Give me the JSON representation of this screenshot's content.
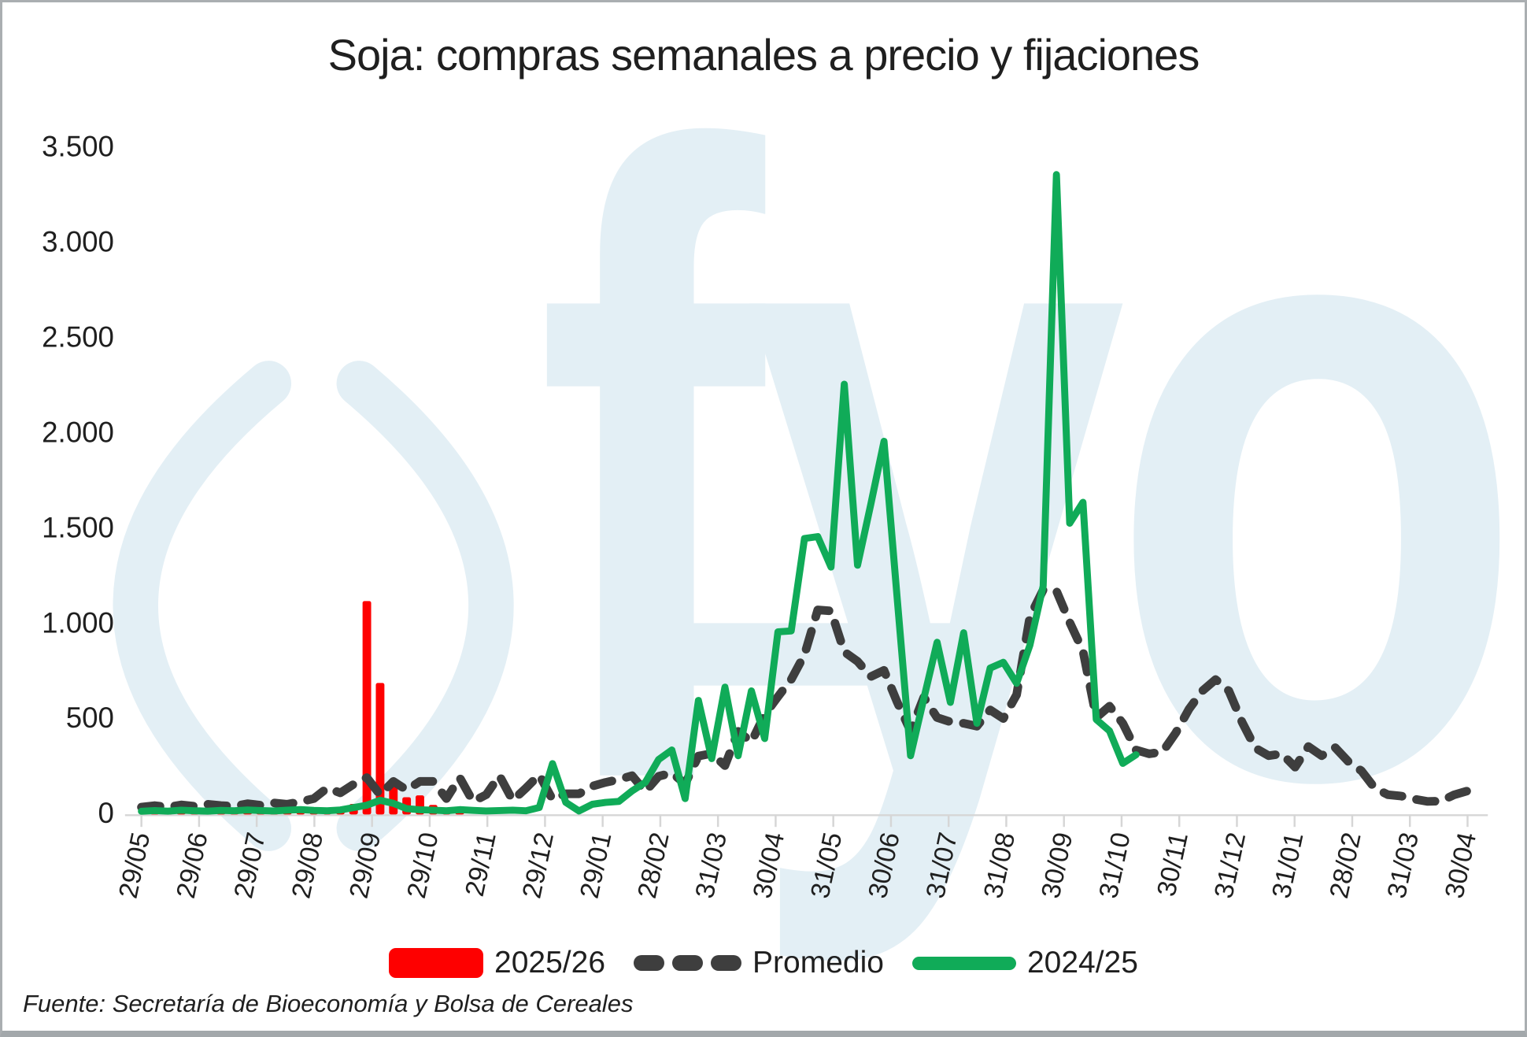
{
  "title": "Soja: compras semanales a precio y fijaciones",
  "source_note": "Fuente: Secretaría de Bioeconomía y Bolsa de Cereales",
  "watermark_text": "fyo",
  "colors": {
    "background": "#FFFFFF",
    "frame_border": "#AAAEB1",
    "red": "#FE0000",
    "green": "#10AB58",
    "dark": "#3E3E3E",
    "axis": "#D6D6D6",
    "watermark": "#E3EFF5",
    "text": "#1F1F1F"
  },
  "legend": {
    "items": [
      {
        "label": "2025/26",
        "type": "bar"
      },
      {
        "label": "Promedio",
        "type": "dashed-line"
      },
      {
        "label": "2024/25",
        "type": "line"
      }
    ]
  },
  "chart_data": {
    "type": "mixed bar + line (weekly purchases, tonnes in thousands)",
    "title": "Soja: compras semanales a precio y fijaciones",
    "xlabel": "",
    "ylabel": "",
    "grid": false,
    "legend_position": "bottom-center",
    "weeks_total": 101,
    "x_axis": {
      "note": "weekly data points, monthly tick labels, labels rotated",
      "tick_labels": [
        "29/05",
        "29/06",
        "29/07",
        "29/08",
        "29/09",
        "29/10",
        "29/11",
        "29/12",
        "29/01",
        "28/02",
        "31/03",
        "30/04",
        "31/05",
        "30/06",
        "31/07",
        "31/08",
        "30/09",
        "31/10",
        "30/11",
        "31/12",
        "31/01",
        "28/02",
        "31/03",
        "30/04"
      ]
    },
    "y_axis": {
      "min": 0,
      "max": 3500,
      "tick_values": [
        0,
        500,
        1000,
        1500,
        2000,
        2500,
        3000,
        3500
      ],
      "tick_labels": [
        "0",
        "500",
        "1.000",
        "1.500",
        "2.000",
        "2.500",
        "3.000",
        "3.500"
      ]
    },
    "series": [
      {
        "name": "2025/26",
        "type": "bar",
        "color": "#FE0000",
        "start_week": 0,
        "values": [
          0,
          2,
          1,
          3,
          2,
          2,
          4,
          8,
          5,
          10,
          7,
          12,
          20,
          34,
          24,
          40,
          55,
          1120,
          690,
          150,
          90,
          100,
          50,
          15,
          8
        ]
      },
      {
        "name": "Promedio",
        "type": "line",
        "dashed": true,
        "color": "#3E3E3E",
        "start_week": 0,
        "values": [
          30,
          38,
          30,
          42,
          35,
          45,
          38,
          35,
          48,
          40,
          52,
          45,
          58,
          75,
          130,
          105,
          150,
          185,
          95,
          165,
          120,
          165,
          165,
          75,
          185,
          60,
          95,
          195,
          65,
          130,
          200,
          70,
          100,
          100,
          140,
          160,
          175,
          195,
          112,
          192,
          210,
          152,
          298,
          312,
          248,
          428,
          372,
          515,
          610,
          700,
          830,
          1065,
          1060,
          845,
          795,
          715,
          748,
          580,
          430,
          607,
          500,
          478,
          470,
          455,
          540,
          495,
          620,
          1030,
          1170,
          1165,
          1000,
          850,
          500,
          560,
          470,
          330,
          310,
          320,
          420,
          545,
          640,
          700,
          640,
          476,
          340,
          300,
          310,
          240,
          348,
          300,
          344,
          270,
          220,
          130,
          95,
          88,
          72,
          60,
          62,
          95,
          115
        ]
      },
      {
        "name": "2024/25",
        "type": "line",
        "dashed": false,
        "color": "#10AB58",
        "start_week": 0,
        "values": [
          8,
          12,
          9,
          14,
          11,
          9,
          13,
          11,
          15,
          12,
          10,
          14,
          17,
          13,
          11,
          15,
          28,
          40,
          66,
          50,
          22,
          16,
          14,
          11,
          17,
          13,
          10,
          12,
          14,
          11,
          28,
          258,
          55,
          10,
          45,
          55,
          60,
          115,
          160,
          280,
          330,
          75,
          590,
          285,
          660,
          300,
          640,
          390,
          950,
          955,
          1440,
          1450,
          1290,
          2250,
          1300,
          1620,
          1950,
          1120,
          300,
          600,
          895,
          580,
          945,
          470,
          760,
          790,
          680,
          880,
          1190,
          3350,
          1520,
          1630,
          490,
          430,
          260,
          305
        ]
      }
    ]
  }
}
